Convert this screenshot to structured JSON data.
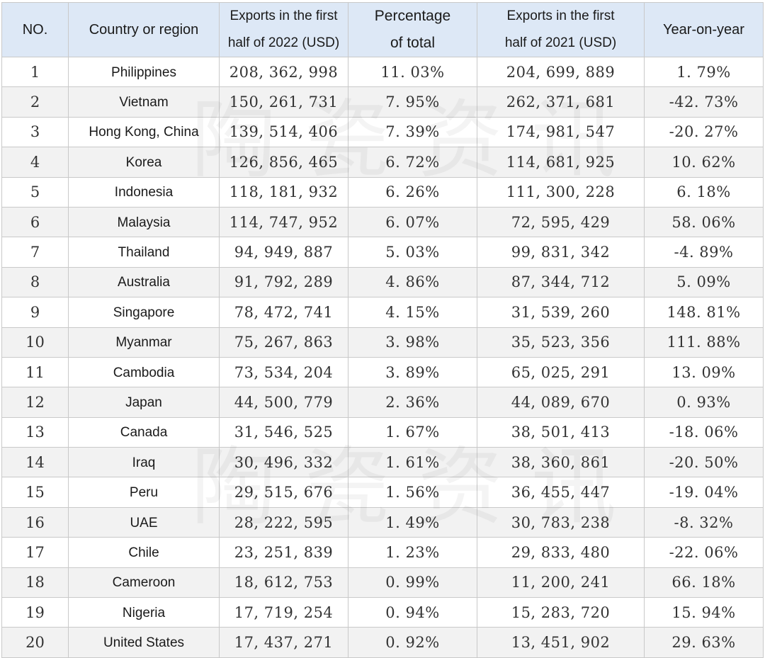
{
  "table": {
    "headers": {
      "no": "NO.",
      "country": "Country or region",
      "exports_2022_line1": "Exports in the first",
      "exports_2022_line2": "half of 2022 (USD)",
      "pct_line1": "Percentage",
      "pct_line2": "of total",
      "exports_2021_line1": "Exports in the first",
      "exports_2021_line2": "half of 2021 (USD)",
      "yoy": "Year-on-year"
    },
    "rows": [
      {
        "no": "1",
        "country": "Philippines",
        "exp2022": "208, 362, 998",
        "pct": "11. 03%",
        "exp2021": "204, 699, 889",
        "yoy": "1. 79%"
      },
      {
        "no": "2",
        "country": "Vietnam",
        "exp2022": "150, 261, 731",
        "pct": "7. 95%",
        "exp2021": "262, 371, 681",
        "yoy": "-42. 73%"
      },
      {
        "no": "3",
        "country": "Hong Kong, China",
        "exp2022": "139, 514, 406",
        "pct": "7. 39%",
        "exp2021": "174, 981, 547",
        "yoy": "-20. 27%"
      },
      {
        "no": "4",
        "country": "Korea",
        "exp2022": "126, 856, 465",
        "pct": "6. 72%",
        "exp2021": "114, 681, 925",
        "yoy": "10. 62%"
      },
      {
        "no": "5",
        "country": "Indonesia",
        "exp2022": "118, 181, 932",
        "pct": "6. 26%",
        "exp2021": "111, 300, 228",
        "yoy": "6. 18%"
      },
      {
        "no": "6",
        "country": "Malaysia",
        "exp2022": "114, 747, 952",
        "pct": "6. 07%",
        "exp2021": "72, 595, 429",
        "yoy": "58. 06%"
      },
      {
        "no": "7",
        "country": "Thailand",
        "exp2022": "94, 949, 887",
        "pct": "5. 03%",
        "exp2021": "99, 831, 342",
        "yoy": "-4. 89%"
      },
      {
        "no": "8",
        "country": "Australia",
        "exp2022": "91, 792, 289",
        "pct": "4. 86%",
        "exp2021": "87, 344, 712",
        "yoy": "5. 09%"
      },
      {
        "no": "9",
        "country": "Singapore",
        "exp2022": "78, 472, 741",
        "pct": "4. 15%",
        "exp2021": "31, 539, 260",
        "yoy": "148. 81%"
      },
      {
        "no": "10",
        "country": "Myanmar",
        "exp2022": "75, 267, 863",
        "pct": "3. 98%",
        "exp2021": "35, 523, 356",
        "yoy": "111. 88%"
      },
      {
        "no": "11",
        "country": "Cambodia",
        "exp2022": "73, 534, 204",
        "pct": "3. 89%",
        "exp2021": "65, 025, 291",
        "yoy": "13. 09%"
      },
      {
        "no": "12",
        "country": "Japan",
        "exp2022": "44, 500, 779",
        "pct": "2. 36%",
        "exp2021": "44, 089, 670",
        "yoy": "0. 93%"
      },
      {
        "no": "13",
        "country": "Canada",
        "exp2022": "31, 546, 525",
        "pct": "1. 67%",
        "exp2021": "38, 501, 413",
        "yoy": "-18. 06%"
      },
      {
        "no": "14",
        "country": "Iraq",
        "exp2022": "30, 496, 332",
        "pct": "1. 61%",
        "exp2021": "38, 360, 861",
        "yoy": "-20. 50%"
      },
      {
        "no": "15",
        "country": "Peru",
        "exp2022": "29, 515, 676",
        "pct": "1. 56%",
        "exp2021": "36, 455, 447",
        "yoy": "-19. 04%"
      },
      {
        "no": "16",
        "country": "UAE",
        "exp2022": "28, 222, 595",
        "pct": "1. 49%",
        "exp2021": "30, 783, 238",
        "yoy": "-8. 32%"
      },
      {
        "no": "17",
        "country": "Chile",
        "exp2022": "23, 251, 839",
        "pct": "1. 23%",
        "exp2021": "29, 833, 480",
        "yoy": "-22. 06%"
      },
      {
        "no": "18",
        "country": "Cameroon",
        "exp2022": "18, 612, 753",
        "pct": "0. 99%",
        "exp2021": "11, 200, 241",
        "yoy": "66. 18%"
      },
      {
        "no": "19",
        "country": "Nigeria",
        "exp2022": "17, 719, 254",
        "pct": "0. 94%",
        "exp2021": "15, 283, 720",
        "yoy": "15. 94%"
      },
      {
        "no": "20",
        "country": "United States",
        "exp2022": "17, 437, 271",
        "pct": "0. 92%",
        "exp2021": "13, 451, 902",
        "yoy": "29. 63%"
      }
    ]
  },
  "watermark": {
    "text": "陶瓷资讯"
  }
}
